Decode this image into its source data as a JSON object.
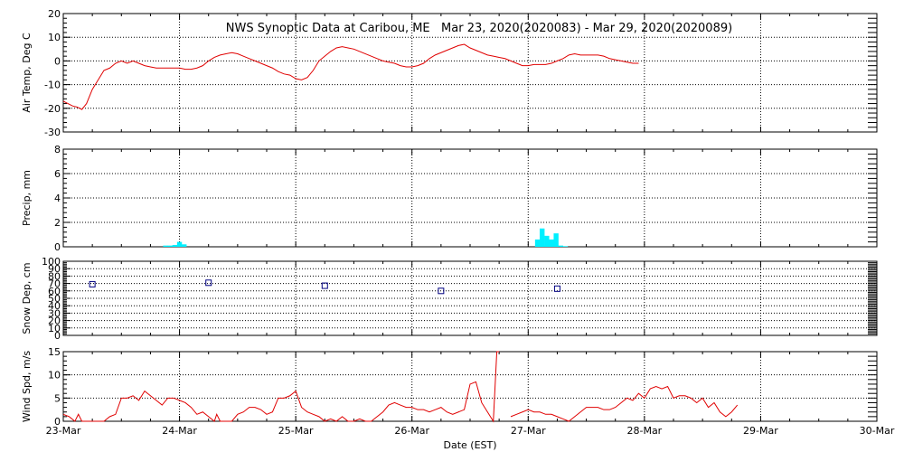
{
  "chart_data": {
    "type": "line",
    "title": "NWS Synoptic Data at Caribou, ME   Mar 23, 2020(2020083) - Mar 29, 2020(2020089)",
    "xlabel": "Date (EST)",
    "x_tick_labels": [
      "23-Mar",
      "24-Mar",
      "25-Mar",
      "26-Mar",
      "27-Mar",
      "28-Mar",
      "29-Mar",
      "30-Mar"
    ],
    "xlim_days": [
      0,
      7
    ],
    "grid": true,
    "colors": {
      "temp": "#e00000",
      "precip": "#00f0ff",
      "snow": "#000080",
      "wind": "#e00000",
      "grid": "#000000"
    },
    "panels": [
      {
        "id": "temp",
        "ylabel": "Air Temp, Deg C",
        "ylim": [
          -30,
          20
        ],
        "yticks": [
          -30,
          -20,
          -10,
          0,
          10,
          20
        ],
        "series": [
          {
            "type": "line",
            "points": [
              [
                0.0,
                -17
              ],
              [
                0.04,
                -18
              ],
              [
                0.08,
                -19
              ],
              [
                0.12,
                -19.5
              ],
              [
                0.16,
                -20.5
              ],
              [
                0.2,
                -18
              ],
              [
                0.25,
                -12
              ],
              [
                0.3,
                -8
              ],
              [
                0.35,
                -4
              ],
              [
                0.4,
                -3
              ],
              [
                0.45,
                -1
              ],
              [
                0.5,
                0
              ],
              [
                0.55,
                -1
              ],
              [
                0.6,
                0
              ],
              [
                0.65,
                -1
              ],
              [
                0.7,
                -2
              ],
              [
                0.75,
                -2.5
              ],
              [
                0.8,
                -3
              ],
              [
                0.9,
                -3
              ],
              [
                1.0,
                -3
              ],
              [
                1.05,
                -3.5
              ],
              [
                1.1,
                -3.5
              ],
              [
                1.15,
                -3
              ],
              [
                1.2,
                -2
              ],
              [
                1.25,
                0
              ],
              [
                1.3,
                1.5
              ],
              [
                1.35,
                2.5
              ],
              [
                1.4,
                3
              ],
              [
                1.45,
                3.5
              ],
              [
                1.5,
                3
              ],
              [
                1.55,
                2
              ],
              [
                1.6,
                1
              ],
              [
                1.65,
                0
              ],
              [
                1.7,
                -1
              ],
              [
                1.75,
                -2
              ],
              [
                1.8,
                -3
              ],
              [
                1.85,
                -4.5
              ],
              [
                1.9,
                -5.5
              ],
              [
                1.95,
                -6
              ],
              [
                2.0,
                -7.5
              ],
              [
                2.05,
                -8
              ],
              [
                2.1,
                -7
              ],
              [
                2.15,
                -4
              ],
              [
                2.2,
                0
              ],
              [
                2.25,
                2
              ],
              [
                2.3,
                4
              ],
              [
                2.35,
                5.5
              ],
              [
                2.4,
                6
              ],
              [
                2.45,
                5.5
              ],
              [
                2.5,
                5
              ],
              [
                2.55,
                4
              ],
              [
                2.6,
                3
              ],
              [
                2.65,
                2
              ],
              [
                2.7,
                1
              ],
              [
                2.75,
                0
              ],
              [
                2.8,
                -0.5
              ],
              [
                2.85,
                -1
              ],
              [
                2.9,
                -2
              ],
              [
                2.95,
                -2.5
              ],
              [
                3.0,
                -2.5
              ],
              [
                3.05,
                -2
              ],
              [
                3.1,
                -1
              ],
              [
                3.15,
                1
              ],
              [
                3.2,
                2.5
              ],
              [
                3.25,
                3.5
              ],
              [
                3.3,
                4.5
              ],
              [
                3.35,
                5.5
              ],
              [
                3.4,
                6.5
              ],
              [
                3.45,
                7
              ],
              [
                3.5,
                5.5
              ],
              [
                3.55,
                4.5
              ],
              [
                3.6,
                3.5
              ],
              [
                3.65,
                2.5
              ],
              [
                3.7,
                2
              ],
              [
                3.75,
                1.5
              ],
              [
                3.8,
                1
              ],
              [
                3.85,
                0
              ],
              [
                3.9,
                -1
              ],
              [
                3.95,
                -2
              ],
              [
                4.0,
                -2
              ],
              [
                4.05,
                -1.5
              ],
              [
                4.1,
                -1.5
              ],
              [
                4.15,
                -1.5
              ],
              [
                4.2,
                -1
              ],
              [
                4.25,
                0
              ],
              [
                4.3,
                1
              ],
              [
                4.35,
                2.5
              ],
              [
                4.4,
                3
              ],
              [
                4.45,
                2.5
              ],
              [
                4.5,
                2.5
              ],
              [
                4.55,
                2.5
              ],
              [
                4.6,
                2.5
              ],
              [
                4.65,
                2
              ],
              [
                4.7,
                1
              ],
              [
                4.75,
                0.5
              ],
              [
                4.8,
                0
              ],
              [
                4.85,
                -0.5
              ],
              [
                4.9,
                -1
              ],
              [
                4.95,
                -1
              ]
            ]
          }
        ]
      },
      {
        "id": "precip",
        "ylabel": "Precip, mm",
        "ylim": [
          0,
          8
        ],
        "yticks": [
          0,
          2,
          4,
          6,
          8
        ],
        "bar_width_days": 0.042,
        "bars": [
          [
            0.88,
            0.1
          ],
          [
            0.92,
            0.1
          ],
          [
            0.96,
            0.15
          ],
          [
            1.0,
            0.4
          ],
          [
            1.04,
            0.2
          ],
          [
            4.08,
            0.6
          ],
          [
            4.12,
            1.5
          ],
          [
            4.16,
            0.9
          ],
          [
            4.2,
            0.6
          ],
          [
            4.24,
            1.1
          ],
          [
            4.28,
            0.1
          ],
          [
            4.32,
            0.05
          ]
        ]
      },
      {
        "id": "snow",
        "ylabel": "Snow Dep, cm",
        "ylim": [
          0,
          100
        ],
        "yticks": [
          0,
          10,
          20,
          30,
          40,
          50,
          60,
          70,
          80,
          90,
          100
        ],
        "markers": [
          [
            0.25,
            69
          ],
          [
            1.25,
            71
          ],
          [
            2.25,
            67
          ],
          [
            3.25,
            60
          ],
          [
            4.25,
            63
          ]
        ]
      },
      {
        "id": "wind",
        "ylabel": "Wind Spd, m/s",
        "ylim": [
          0,
          15
        ],
        "yticks": [
          0,
          5,
          10,
          15
        ],
        "segments": [
          [
            [
              0.0,
              1.5
            ],
            [
              0.05,
              1
            ],
            [
              0.1,
              0
            ],
            [
              0.13,
              1.5
            ],
            [
              0.16,
              0
            ],
            [
              0.25,
              0
            ],
            [
              0.35,
              0
            ],
            [
              0.4,
              1
            ],
            [
              0.45,
              1.5
            ],
            [
              0.5,
              5
            ],
            [
              0.55,
              5
            ],
            [
              0.6,
              5.5
            ],
            [
              0.65,
              4.5
            ],
            [
              0.7,
              6.5
            ],
            [
              0.75,
              5.5
            ],
            [
              0.8,
              4.5
            ],
            [
              0.85,
              3.5
            ],
            [
              0.9,
              5
            ],
            [
              0.95,
              5
            ],
            [
              1.0,
              4.5
            ],
            [
              1.05,
              4
            ],
            [
              1.1,
              3
            ],
            [
              1.15,
              1.5
            ],
            [
              1.2,
              2
            ],
            [
              1.25,
              1
            ],
            [
              1.3,
              0
            ],
            [
              1.32,
              1.5
            ],
            [
              1.35,
              0
            ],
            [
              1.45,
              0
            ],
            [
              1.5,
              1.5
            ],
            [
              1.55,
              2
            ],
            [
              1.6,
              3
            ],
            [
              1.65,
              3
            ],
            [
              1.7,
              2.5
            ],
            [
              1.75,
              1.5
            ],
            [
              1.8,
              2
            ],
            [
              1.85,
              5
            ],
            [
              1.9,
              5
            ],
            [
              1.95,
              5.5
            ],
            [
              2.0,
              6.5
            ],
            [
              2.05,
              3
            ],
            [
              2.1,
              2
            ],
            [
              2.15,
              1.5
            ],
            [
              2.2,
              1
            ],
            [
              2.25,
              0
            ],
            [
              2.3,
              0.5
            ],
            [
              2.35,
              0
            ],
            [
              2.4,
              1
            ],
            [
              2.45,
              0
            ],
            [
              2.5,
              0
            ],
            [
              2.55,
              0.5
            ],
            [
              2.6,
              0
            ],
            [
              2.65,
              0
            ],
            [
              2.7,
              1
            ],
            [
              2.75,
              2
            ],
            [
              2.8,
              3.5
            ],
            [
              2.85,
              4
            ],
            [
              2.9,
              3.5
            ],
            [
              2.95,
              3
            ],
            [
              3.0,
              3
            ],
            [
              3.05,
              2.5
            ],
            [
              3.1,
              2.5
            ],
            [
              3.15,
              2
            ],
            [
              3.2,
              2.5
            ],
            [
              3.25,
              3
            ],
            [
              3.3,
              2
            ],
            [
              3.35,
              1.5
            ],
            [
              3.4,
              2
            ],
            [
              3.45,
              2.5
            ],
            [
              3.5,
              8
            ],
            [
              3.55,
              8.5
            ],
            [
              3.6,
              4
            ],
            [
              3.65,
              2
            ],
            [
              3.7,
              0
            ],
            [
              3.73,
              15
            ],
            [
              3.75,
              15
            ]
          ],
          [
            [
              3.85,
              1
            ],
            [
              3.9,
              1.5
            ],
            [
              3.95,
              2
            ],
            [
              4.0,
              2.5
            ],
            [
              4.05,
              2
            ],
            [
              4.1,
              2
            ],
            [
              4.15,
              1.5
            ],
            [
              4.2,
              1.5
            ],
            [
              4.25,
              1
            ],
            [
              4.3,
              0.5
            ],
            [
              4.35,
              0
            ],
            [
              4.4,
              1
            ],
            [
              4.45,
              2
            ],
            [
              4.5,
              3
            ],
            [
              4.55,
              3
            ],
            [
              4.6,
              3
            ],
            [
              4.65,
              2.5
            ],
            [
              4.7,
              2.5
            ],
            [
              4.75,
              3
            ],
            [
              4.8,
              4
            ],
            [
              4.85,
              5
            ],
            [
              4.9,
              4.5
            ],
            [
              4.95,
              6
            ],
            [
              5.0,
              5
            ],
            [
              5.05,
              7
            ],
            [
              5.1,
              7.5
            ],
            [
              5.15,
              7
            ],
            [
              5.2,
              7.5
            ],
            [
              5.25,
              5
            ],
            [
              5.3,
              5.5
            ],
            [
              5.35,
              5.5
            ],
            [
              5.4,
              5
            ],
            [
              5.45,
              4
            ],
            [
              5.5,
              5
            ],
            [
              5.55,
              3
            ],
            [
              5.6,
              4
            ],
            [
              5.65,
              2
            ],
            [
              5.7,
              1
            ],
            [
              5.75,
              2
            ],
            [
              5.8,
              3.5
            ]
          ]
        ]
      }
    ]
  }
}
